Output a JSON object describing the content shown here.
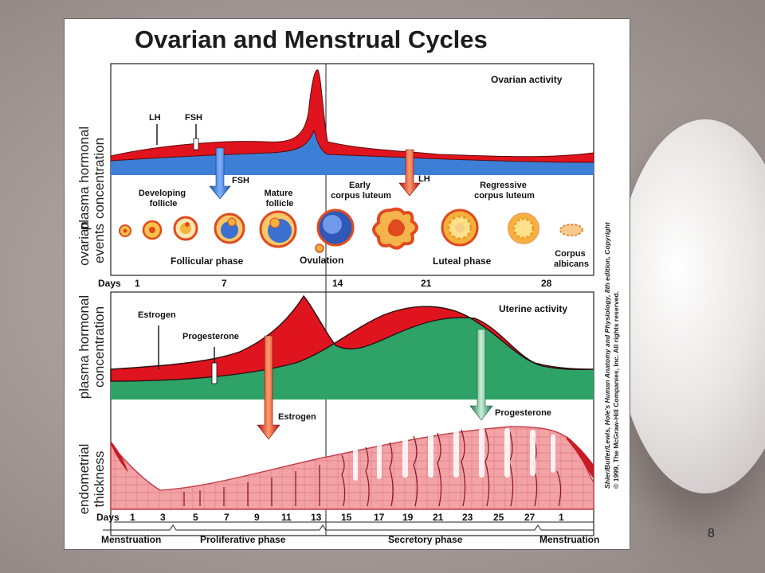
{
  "title": "Ovarian and Menstrual Cycles",
  "slide_number": "8",
  "y_labels": {
    "top_line1": "plasma hormonal",
    "top_line2": "concentration",
    "events_line1": "ovarian",
    "events_line2": "events",
    "bottom_line1": "plasma hormonal",
    "bottom_line2": "concentration",
    "endo_line1": "endometrial",
    "endo_line2": "thickness"
  },
  "ovarian_chart": {
    "activity_label": "Ovarian activity",
    "lh_label": "LH",
    "fsh_label": "FSH",
    "fsh_arrow_label": "FSH",
    "lh_arrow_label": "LH"
  },
  "ovarian_events": {
    "developing_follicle_l1": "Developing",
    "developing_follicle_l2": "follicle",
    "mature_follicle_l1": "Mature",
    "mature_follicle_l2": "follicle",
    "early_cl_l1": "Early",
    "early_cl_l2": "corpus luteum",
    "regressive_cl_l1": "Regressive",
    "regressive_cl_l2": "corpus luteum",
    "follicular_phase": "Follicular phase",
    "ovulation": "Ovulation",
    "luteal_phase": "Luteal phase",
    "corpus_albicans_l1": "Corpus",
    "corpus_albicans_l2": "albicans"
  },
  "days_top": {
    "label": "Days",
    "ticks": [
      "1",
      "7",
      "14",
      "21",
      "28"
    ]
  },
  "uterine_chart": {
    "activity_label": "Uterine activity",
    "estrogen_label": "Estrogen",
    "progesterone_label": "Progesterone",
    "estrogen_arrow_label": "Estrogen",
    "progesterone_arrow_label": "Progesterone"
  },
  "days_bottom": {
    "label": "Days",
    "ticks": [
      "1",
      "3",
      "5",
      "7",
      "9",
      "11",
      "13",
      "15",
      "17",
      "19",
      "21",
      "23",
      "25",
      "27",
      "1"
    ]
  },
  "phases": {
    "menstruation": "Menstruation",
    "proliferative": "Proliferative phase",
    "secretory": "Secretory phase",
    "menstruation_end": "Menstruation"
  },
  "credit_line1": "Shier/Butler/Lewis, Hole's Human Anatomy and Physiology, 8th edition, Copyright",
  "credit_line2": "© 1999, The McGraw-Hill Companies, Inc. All rights reserved.",
  "colors": {
    "lh_red": "#e0141e",
    "fsh_blue": "#3d7fd6",
    "estrogen_red": "#e0141e",
    "progesterone_green": "#2fa267",
    "endometrium_pink": "#f2a3a6"
  }
}
